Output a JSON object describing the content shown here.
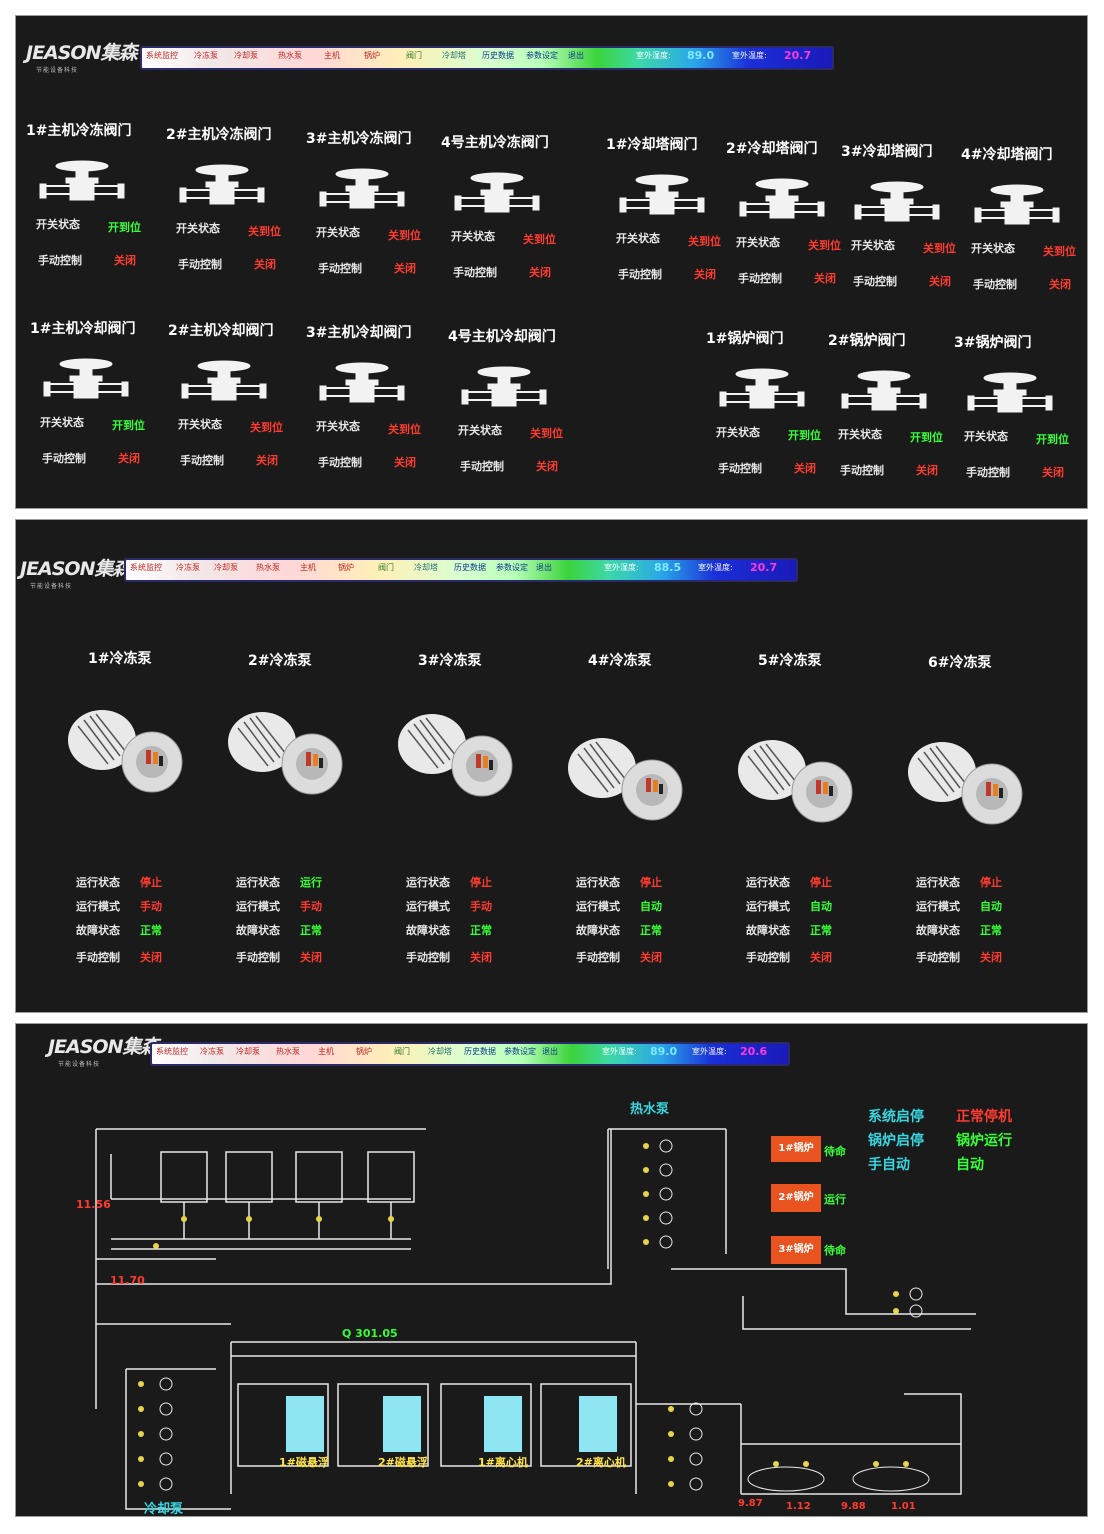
{
  "header": {
    "logo": "JEASON集森",
    "logo_sub": "节能设备科技",
    "nav": [
      "系统监控",
      "冷冻泵",
      "冷却泵",
      "热水泵",
      "主机",
      "锅炉",
      "阀门",
      "冷却塔",
      "历史数据",
      "参数设定",
      "退出"
    ],
    "outdoor_humidity_label": "室外湿度:",
    "outdoor_temp_label": "室外温度:",
    "screens": [
      {
        "humidity": "89.0",
        "temp": "20.7"
      },
      {
        "humidity": "88.5",
        "temp": "20.7"
      },
      {
        "humidity": "89.0",
        "temp": "20.6"
      }
    ]
  },
  "valve_labels": {
    "status": "开关状态",
    "manual": "手动控制"
  },
  "valves_row1": [
    {
      "title": "1#主机冷冻阀门",
      "status": "开到位",
      "manual": "关闭",
      "status_color": "green"
    },
    {
      "title": "2#主机冷冻阀门",
      "status": "关到位",
      "manual": "关闭",
      "status_color": "red"
    },
    {
      "title": "3#主机冷冻阀门",
      "status": "关到位",
      "manual": "关闭",
      "status_color": "red"
    },
    {
      "title": "4号主机冷冻阀门",
      "status": "关到位",
      "manual": "关闭",
      "status_color": "red"
    },
    {
      "title": "1#冷却塔阀门",
      "status": "关到位",
      "manual": "关闭",
      "status_color": "red"
    },
    {
      "title": "2#冷却塔阀门",
      "status": "关到位",
      "manual": "关闭",
      "status_color": "red"
    },
    {
      "title": "3#冷却塔阀门",
      "status": "关到位",
      "manual": "关闭",
      "status_color": "red"
    },
    {
      "title": "4#冷却塔阀门",
      "status": "关到位",
      "manual": "关闭",
      "status_color": "red"
    }
  ],
  "valves_row2": [
    {
      "title": "1#主机冷却阀门",
      "status": "开到位",
      "manual": "关闭",
      "status_color": "green"
    },
    {
      "title": "2#主机冷却阀门",
      "status": "关到位",
      "manual": "关闭",
      "status_color": "red"
    },
    {
      "title": "3#主机冷却阀门",
      "status": "关到位",
      "manual": "关闭",
      "status_color": "red"
    },
    {
      "title": "4号主机冷却阀门",
      "status": "关到位",
      "manual": "关闭",
      "status_color": "red"
    },
    {
      "title": "1#锅炉阀门",
      "status": "开到位",
      "manual": "关闭",
      "status_color": "green"
    },
    {
      "title": "2#锅炉阀门",
      "status": "开到位",
      "manual": "关闭",
      "status_color": "green"
    },
    {
      "title": "3#锅炉阀门",
      "status": "开到位",
      "manual": "关闭",
      "status_color": "green"
    }
  ],
  "pump_labels": {
    "run": "运行状态",
    "mode": "运行模式",
    "fault": "故障状态",
    "manual": "手动控制"
  },
  "pumps": [
    {
      "title": "1#冷冻泵",
      "run": "停止",
      "mode": "手动",
      "fault": "正常",
      "manual": "关闭",
      "run_c": "red",
      "mode_c": "red"
    },
    {
      "title": "2#冷冻泵",
      "run": "运行",
      "mode": "手动",
      "fault": "正常",
      "manual": "关闭",
      "run_c": "green",
      "mode_c": "red"
    },
    {
      "title": "3#冷冻泵",
      "run": "停止",
      "mode": "手动",
      "fault": "正常",
      "manual": "关闭",
      "run_c": "red",
      "mode_c": "red"
    },
    {
      "title": "4#冷冻泵",
      "run": "停止",
      "mode": "自动",
      "fault": "正常",
      "manual": "关闭",
      "run_c": "red",
      "mode_c": "green"
    },
    {
      "title": "5#冷冻泵",
      "run": "停止",
      "mode": "自动",
      "fault": "正常",
      "manual": "关闭",
      "run_c": "red",
      "mode_c": "green"
    },
    {
      "title": "6#冷冻泵",
      "run": "停止",
      "mode": "自动",
      "fault": "正常",
      "manual": "关闭",
      "run_c": "red",
      "mode_c": "green"
    }
  ],
  "diagram": {
    "hot_pump": "热水泵",
    "cool_pump": "冷却泵",
    "sys_start": "系统启停",
    "sys_state": "正常停机",
    "boiler_start": "锅炉启停",
    "boiler_state": "锅炉运行",
    "manual_auto": "手自动",
    "mode_state": "自动",
    "val_a": "11.56",
    "val_b": "11.70",
    "flow": "Q 301.05",
    "boilers": [
      {
        "name": "1#锅炉",
        "state": "待命"
      },
      {
        "name": "2#锅炉",
        "state": "运行"
      },
      {
        "name": "3#锅炉",
        "state": "待命"
      }
    ],
    "chillers": [
      "1#磁悬浮",
      "2#磁悬浮",
      "1#离心机",
      "2#离心机"
    ],
    "bottom_vals": [
      "9.87",
      "1.12",
      "9.88",
      "1.01"
    ]
  }
}
